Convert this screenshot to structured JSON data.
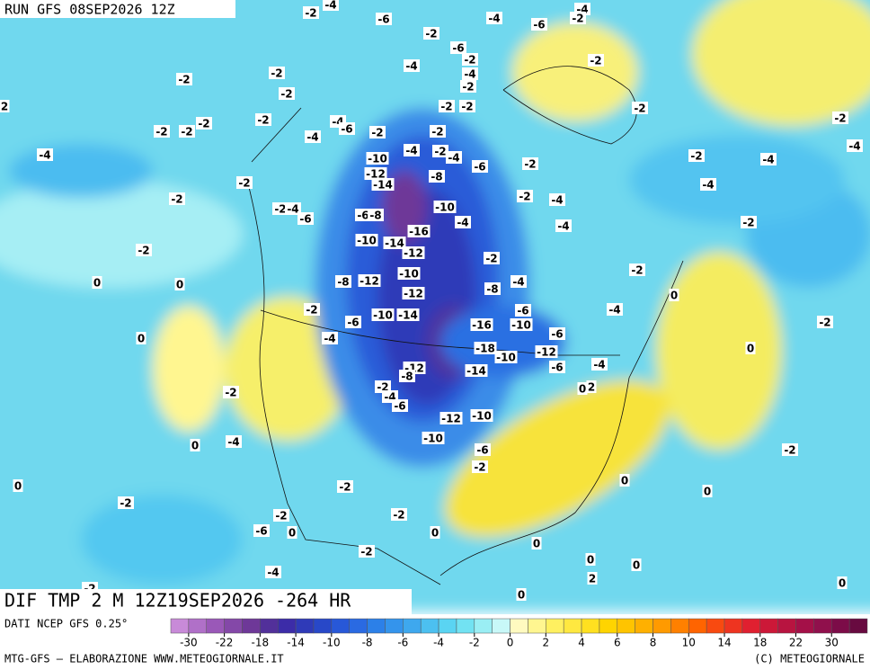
{
  "header": {
    "run": "RUN GFS 08SEP2026 12Z",
    "title": "DIF TMP 2 M 12Z19SEP2026 -264 HR"
  },
  "footer": {
    "source": "DATI NCEP GFS 0.25°",
    "credit": "MTG-GFS — ELABORAZIONE WWW.METEOGIORNALE.IT",
    "copyright": "(C) METEOGIORNALE"
  },
  "colorbar": {
    "ticks": [
      -30,
      -22,
      -18,
      -14,
      -10,
      -8,
      -6,
      -4,
      -2,
      0,
      2,
      4,
      6,
      8,
      10,
      14,
      18,
      22,
      30
    ],
    "colors": [
      "#c88ad8",
      "#b070c8",
      "#9a58b8",
      "#8448a8",
      "#6e3898",
      "#52309a",
      "#3c2ca8",
      "#2f3ab8",
      "#2848c8",
      "#2858d8",
      "#2a6ae2",
      "#2c80e8",
      "#3494ec",
      "#3ea8ee",
      "#4cc0f0",
      "#5ad4f2",
      "#72e2f2",
      "#9aeef4",
      "#c8f8f8",
      "#fffac0",
      "#fff690",
      "#fff060",
      "#ffe840",
      "#ffe020",
      "#ffd400",
      "#ffc400",
      "#ffb000",
      "#ff9a00",
      "#ff8000",
      "#ff6400",
      "#f84a10",
      "#ee3420",
      "#e02030",
      "#cc1838",
      "#b81440",
      "#a41048",
      "#90104c",
      "#7c0c48",
      "#680a40"
    ]
  },
  "map": {
    "labels": [
      -4,
      -2,
      -6,
      -4,
      -6,
      -4,
      -2,
      -2,
      -6,
      -2,
      -4,
      -4,
      -2,
      -2,
      -2,
      -2,
      -2,
      2,
      -2,
      -2,
      -2,
      -2,
      -2,
      -2,
      -2,
      -2,
      -4,
      -6,
      -2,
      -2,
      -4,
      -10,
      -4,
      -2,
      -4,
      -6,
      -2,
      -2,
      -4,
      -4,
      -4,
      -12,
      -8,
      -14,
      -2,
      -2,
      -4,
      -4,
      -2,
      -2,
      -4,
      -6,
      -10,
      -6,
      -8,
      -4,
      -4,
      -2,
      -16,
      -10,
      -14,
      -12,
      -2,
      -2,
      -2,
      -10,
      -8,
      -12,
      -4,
      -8,
      -12,
      0,
      0,
      0,
      -2,
      -4,
      -6,
      -10,
      -14,
      -6,
      -16,
      -10,
      -6,
      -2,
      0,
      -4,
      -18,
      -12,
      -10,
      -6,
      -4,
      0,
      -12,
      -8,
      -14,
      -2,
      -4,
      -2,
      0,
      2,
      -6,
      -12,
      -10,
      -4,
      0,
      -10,
      -6,
      -2,
      -2,
      0,
      -2,
      0,
      0,
      -2,
      -2,
      -2,
      -6,
      0,
      0,
      0,
      -2,
      -4,
      0,
      0,
      2,
      0,
      0,
      -2
    ]
  }
}
